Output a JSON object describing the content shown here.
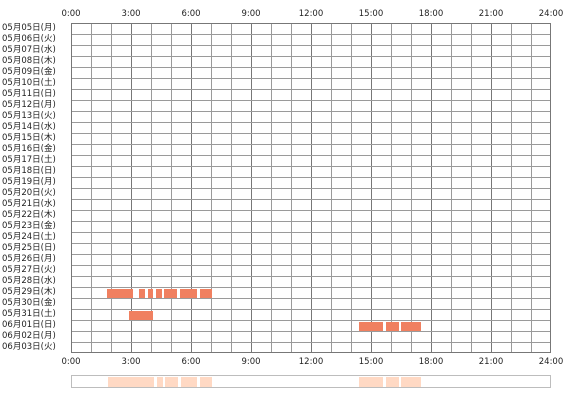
{
  "hours": [
    "0:00",
    "3:00",
    "6:00",
    "9:00",
    "12:00",
    "15:00",
    "18:00",
    "21:00",
    "24:00"
  ],
  "days": [
    "05月05日(月)",
    "05月06日(火)",
    "05月07日(水)",
    "05月08日(木)",
    "05月09日(金)",
    "05月10日(土)",
    "05月11日(日)",
    "05月12日(月)",
    "05月13日(火)",
    "05月14日(水)",
    "05月15日(木)",
    "05月16日(金)",
    "05月17日(土)",
    "05月18日(日)",
    "05月19日(月)",
    "05月20日(火)",
    "05月21日(水)",
    "05月22日(木)",
    "05月23日(金)",
    "05月24日(土)",
    "05月25日(日)",
    "05月26日(月)",
    "05月27日(火)",
    "05月28日(水)",
    "05月29日(木)",
    "05月30日(金)",
    "05月31日(土)",
    "06月01日(日)",
    "06月02日(月)",
    "06月03日(火)"
  ],
  "activity": [
    {
      "day": 24,
      "segments": [
        [
          1.8,
          3.1
        ],
        [
          3.4,
          3.7
        ],
        [
          3.85,
          4.1
        ],
        [
          4.25,
          4.55
        ],
        [
          4.65,
          5.3
        ],
        [
          5.45,
          6.3
        ],
        [
          6.45,
          7.05
        ]
      ]
    },
    {
      "day": 26,
      "segments": [
        [
          2.9,
          4.1
        ]
      ]
    },
    {
      "day": 27,
      "segments": [
        [
          14.4,
          15.6
        ],
        [
          15.75,
          16.4
        ],
        [
          16.5,
          17.5
        ]
      ]
    }
  ],
  "colors": {
    "activity": "#f08060",
    "summary": "#ffd9c4",
    "grid": "#9a9a9a"
  }
}
